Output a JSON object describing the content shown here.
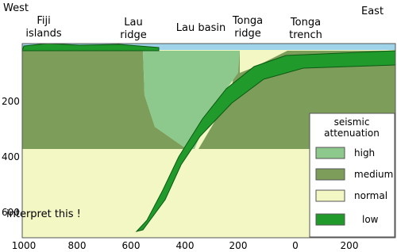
{
  "directions": {
    "west": "West",
    "east": "East"
  },
  "features": [
    {
      "lines": [
        "Fiji",
        "islands"
      ]
    },
    {
      "lines": [
        "Lau",
        "ridge"
      ]
    },
    {
      "lines": [
        "Lau basin"
      ]
    },
    {
      "lines": [
        "Tonga",
        "ridge"
      ]
    },
    {
      "lines": [
        "Tonga",
        "trench"
      ]
    }
  ],
  "depth_labels": [
    "200",
    "400",
    "600"
  ],
  "distance_labels": [
    "1000",
    "800",
    "600",
    "400",
    "200",
    "0",
    "200"
  ],
  "legend": {
    "title": [
      "seismic",
      "attenuation"
    ],
    "items": [
      "high",
      "medium",
      "normal",
      "low"
    ]
  },
  "annotation": "interpret this !"
}
